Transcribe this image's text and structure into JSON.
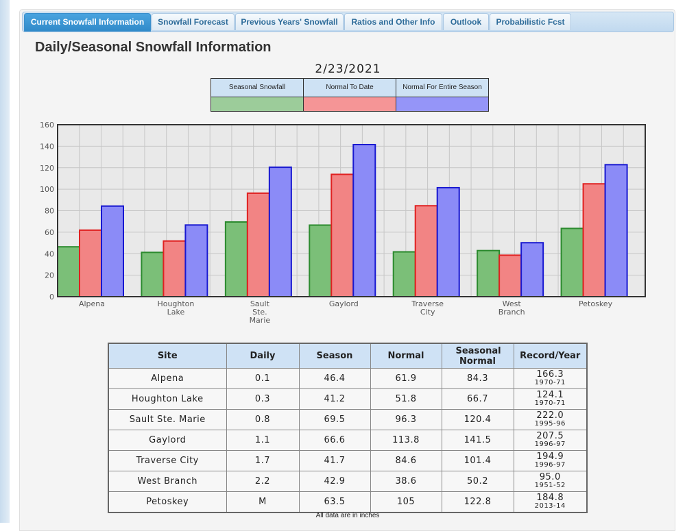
{
  "tabs": [
    "Current Snowfall Information",
    "Snowfall Forecast",
    "Previous Years' Snowfall",
    "Ratios and Other Info",
    "Outlook",
    "Probabilistic Fcst"
  ],
  "page_title": "Daily/Seasonal Snowfall Information",
  "date": "2/23/2021",
  "legend": [
    {
      "label": "Seasonal Snowfall",
      "color": "#9ccc9a"
    },
    {
      "label": "Normal To Date",
      "color": "#f59596"
    },
    {
      "label": "Normal For Entire Season",
      "color": "#9595f8"
    }
  ],
  "chart_data": {
    "type": "bar",
    "categories": [
      "Alpena",
      "Houghton Lake",
      "Sault Ste. Marie",
      "Gaylord",
      "Traverse City",
      "West Branch",
      "Petoskey"
    ],
    "category_lines": [
      [
        "Alpena"
      ],
      [
        "Houghton",
        "Lake"
      ],
      [
        "Sault",
        "Ste.",
        "Marie"
      ],
      [
        "Gaylord"
      ],
      [
        "Traverse",
        "City"
      ],
      [
        "West",
        "Branch"
      ],
      [
        "Petoskey"
      ]
    ],
    "series": [
      {
        "name": "Seasonal Snowfall",
        "values": [
          46.4,
          41.2,
          69.5,
          66.6,
          41.7,
          42.9,
          63.5
        ],
        "fill": "#7bbf78",
        "stroke": "#2b8a2e"
      },
      {
        "name": "Normal To Date",
        "values": [
          61.9,
          51.8,
          96.3,
          113.8,
          84.6,
          38.6,
          105
        ],
        "fill": "#f28484",
        "stroke": "#e02020"
      },
      {
        "name": "Normal For Entire Season",
        "values": [
          84.3,
          66.7,
          120.4,
          141.5,
          101.4,
          50.2,
          122.8
        ],
        "fill": "#8b8bf7",
        "stroke": "#1818d0"
      }
    ],
    "ylim": [
      0,
      160
    ],
    "yticks": [
      0,
      20,
      40,
      60,
      80,
      100,
      120,
      140,
      160
    ],
    "grid": true
  },
  "table": {
    "headers": [
      "Site",
      "Daily",
      "Season",
      "Normal",
      "Seasonal Normal",
      "Record/Year"
    ],
    "rows": [
      {
        "site": "Alpena",
        "daily": "0.1",
        "season": "46.4",
        "normal": "61.9",
        "seasonal_normal": "84.3",
        "record": "166.3",
        "year": "1970-71"
      },
      {
        "site": "Houghton Lake",
        "daily": "0.3",
        "season": "41.2",
        "normal": "51.8",
        "seasonal_normal": "66.7",
        "record": "124.1",
        "year": "1970-71"
      },
      {
        "site": "Sault Ste. Marie",
        "daily": "0.8",
        "season": "69.5",
        "normal": "96.3",
        "seasonal_normal": "120.4",
        "record": "222.0",
        "year": "1995-96"
      },
      {
        "site": "Gaylord",
        "daily": "1.1",
        "season": "66.6",
        "normal": "113.8",
        "seasonal_normal": "141.5",
        "record": "207.5",
        "year": "1996-97"
      },
      {
        "site": "Traverse City",
        "daily": "1.7",
        "season": "41.7",
        "normal": "84.6",
        "seasonal_normal": "101.4",
        "record": "194.9",
        "year": "1996-97"
      },
      {
        "site": "West Branch",
        "daily": "2.2",
        "season": "42.9",
        "normal": "38.6",
        "seasonal_normal": "50.2",
        "record": "95.0",
        "year": "1951-52"
      },
      {
        "site": "Petoskey",
        "daily": "M",
        "season": "63.5",
        "normal": "105",
        "seasonal_normal": "122.8",
        "record": "184.8",
        "year": "2013-14"
      }
    ]
  },
  "footnote": "All data are in inches"
}
